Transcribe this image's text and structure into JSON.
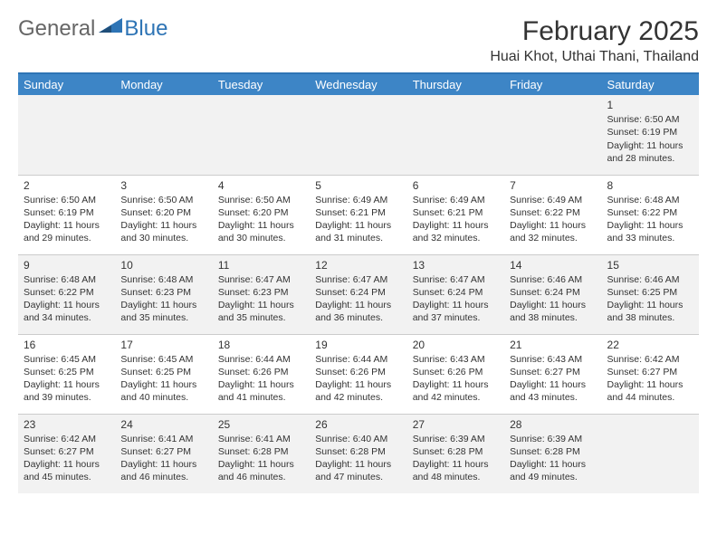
{
  "logo": {
    "general": "General",
    "blue": "Blue"
  },
  "title": "February 2025",
  "location": "Huai Khot, Uthai Thani, Thailand",
  "colors": {
    "header_bg": "#3d85c6",
    "divider": "#2e74b5",
    "shade": "#f2f2f2",
    "text": "#333333"
  },
  "weekdays": [
    "Sunday",
    "Monday",
    "Tuesday",
    "Wednesday",
    "Thursday",
    "Friday",
    "Saturday"
  ],
  "weeks": [
    [
      {
        "n": "",
        "sr": "",
        "ss": "",
        "dl": ""
      },
      {
        "n": "",
        "sr": "",
        "ss": "",
        "dl": ""
      },
      {
        "n": "",
        "sr": "",
        "ss": "",
        "dl": ""
      },
      {
        "n": "",
        "sr": "",
        "ss": "",
        "dl": ""
      },
      {
        "n": "",
        "sr": "",
        "ss": "",
        "dl": ""
      },
      {
        "n": "",
        "sr": "",
        "ss": "",
        "dl": ""
      },
      {
        "n": "1",
        "sr": "Sunrise: 6:50 AM",
        "ss": "Sunset: 6:19 PM",
        "dl": "Daylight: 11 hours and 28 minutes."
      }
    ],
    [
      {
        "n": "2",
        "sr": "Sunrise: 6:50 AM",
        "ss": "Sunset: 6:19 PM",
        "dl": "Daylight: 11 hours and 29 minutes."
      },
      {
        "n": "3",
        "sr": "Sunrise: 6:50 AM",
        "ss": "Sunset: 6:20 PM",
        "dl": "Daylight: 11 hours and 30 minutes."
      },
      {
        "n": "4",
        "sr": "Sunrise: 6:50 AM",
        "ss": "Sunset: 6:20 PM",
        "dl": "Daylight: 11 hours and 30 minutes."
      },
      {
        "n": "5",
        "sr": "Sunrise: 6:49 AM",
        "ss": "Sunset: 6:21 PM",
        "dl": "Daylight: 11 hours and 31 minutes."
      },
      {
        "n": "6",
        "sr": "Sunrise: 6:49 AM",
        "ss": "Sunset: 6:21 PM",
        "dl": "Daylight: 11 hours and 32 minutes."
      },
      {
        "n": "7",
        "sr": "Sunrise: 6:49 AM",
        "ss": "Sunset: 6:22 PM",
        "dl": "Daylight: 11 hours and 32 minutes."
      },
      {
        "n": "8",
        "sr": "Sunrise: 6:48 AM",
        "ss": "Sunset: 6:22 PM",
        "dl": "Daylight: 11 hours and 33 minutes."
      }
    ],
    [
      {
        "n": "9",
        "sr": "Sunrise: 6:48 AM",
        "ss": "Sunset: 6:22 PM",
        "dl": "Daylight: 11 hours and 34 minutes."
      },
      {
        "n": "10",
        "sr": "Sunrise: 6:48 AM",
        "ss": "Sunset: 6:23 PM",
        "dl": "Daylight: 11 hours and 35 minutes."
      },
      {
        "n": "11",
        "sr": "Sunrise: 6:47 AM",
        "ss": "Sunset: 6:23 PM",
        "dl": "Daylight: 11 hours and 35 minutes."
      },
      {
        "n": "12",
        "sr": "Sunrise: 6:47 AM",
        "ss": "Sunset: 6:24 PM",
        "dl": "Daylight: 11 hours and 36 minutes."
      },
      {
        "n": "13",
        "sr": "Sunrise: 6:47 AM",
        "ss": "Sunset: 6:24 PM",
        "dl": "Daylight: 11 hours and 37 minutes."
      },
      {
        "n": "14",
        "sr": "Sunrise: 6:46 AM",
        "ss": "Sunset: 6:24 PM",
        "dl": "Daylight: 11 hours and 38 minutes."
      },
      {
        "n": "15",
        "sr": "Sunrise: 6:46 AM",
        "ss": "Sunset: 6:25 PM",
        "dl": "Daylight: 11 hours and 38 minutes."
      }
    ],
    [
      {
        "n": "16",
        "sr": "Sunrise: 6:45 AM",
        "ss": "Sunset: 6:25 PM",
        "dl": "Daylight: 11 hours and 39 minutes."
      },
      {
        "n": "17",
        "sr": "Sunrise: 6:45 AM",
        "ss": "Sunset: 6:25 PM",
        "dl": "Daylight: 11 hours and 40 minutes."
      },
      {
        "n": "18",
        "sr": "Sunrise: 6:44 AM",
        "ss": "Sunset: 6:26 PM",
        "dl": "Daylight: 11 hours and 41 minutes."
      },
      {
        "n": "19",
        "sr": "Sunrise: 6:44 AM",
        "ss": "Sunset: 6:26 PM",
        "dl": "Daylight: 11 hours and 42 minutes."
      },
      {
        "n": "20",
        "sr": "Sunrise: 6:43 AM",
        "ss": "Sunset: 6:26 PM",
        "dl": "Daylight: 11 hours and 42 minutes."
      },
      {
        "n": "21",
        "sr": "Sunrise: 6:43 AM",
        "ss": "Sunset: 6:27 PM",
        "dl": "Daylight: 11 hours and 43 minutes."
      },
      {
        "n": "22",
        "sr": "Sunrise: 6:42 AM",
        "ss": "Sunset: 6:27 PM",
        "dl": "Daylight: 11 hours and 44 minutes."
      }
    ],
    [
      {
        "n": "23",
        "sr": "Sunrise: 6:42 AM",
        "ss": "Sunset: 6:27 PM",
        "dl": "Daylight: 11 hours and 45 minutes."
      },
      {
        "n": "24",
        "sr": "Sunrise: 6:41 AM",
        "ss": "Sunset: 6:27 PM",
        "dl": "Daylight: 11 hours and 46 minutes."
      },
      {
        "n": "25",
        "sr": "Sunrise: 6:41 AM",
        "ss": "Sunset: 6:28 PM",
        "dl": "Daylight: 11 hours and 46 minutes."
      },
      {
        "n": "26",
        "sr": "Sunrise: 6:40 AM",
        "ss": "Sunset: 6:28 PM",
        "dl": "Daylight: 11 hours and 47 minutes."
      },
      {
        "n": "27",
        "sr": "Sunrise: 6:39 AM",
        "ss": "Sunset: 6:28 PM",
        "dl": "Daylight: 11 hours and 48 minutes."
      },
      {
        "n": "28",
        "sr": "Sunrise: 6:39 AM",
        "ss": "Sunset: 6:28 PM",
        "dl": "Daylight: 11 hours and 49 minutes."
      },
      {
        "n": "",
        "sr": "",
        "ss": "",
        "dl": ""
      }
    ]
  ]
}
